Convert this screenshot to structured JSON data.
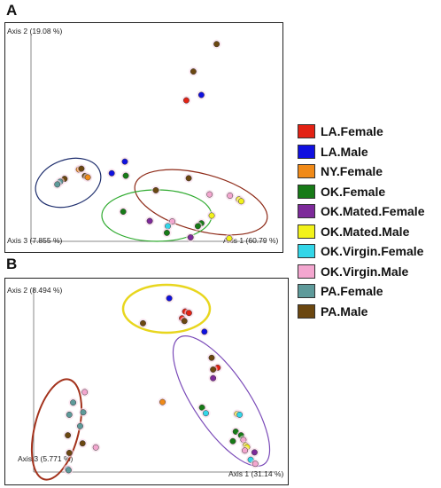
{
  "legend": [
    {
      "label": "LA.Female",
      "color": "#e32214"
    },
    {
      "label": "LA.Male",
      "color": "#1010e0"
    },
    {
      "label": "NY.Female",
      "color": "#f08a18"
    },
    {
      "label": "OK.Female",
      "color": "#177a17"
    },
    {
      "label": "OK.Mated.Female",
      "color": "#7d2a9a"
    },
    {
      "label": "OK.Mated.Male",
      "color": "#f2f21a"
    },
    {
      "label": "OK.Virgin.Female",
      "color": "#33d6e8"
    },
    {
      "label": "OK.Virgin.Male",
      "color": "#f3a6cf"
    },
    {
      "label": "PA.Female",
      "color": "#5e9a9a"
    },
    {
      "label": "PA.Male",
      "color": "#6b4710"
    }
  ],
  "chart_data": [
    {
      "type": "scatter",
      "panel": "A",
      "axis1_label": "Axis 1 (60.79 %)",
      "axis2_label": "Axis 2 (19.08 %)",
      "axis3_label": "Axis 3 (7.855 %)",
      "xlim": [
        0,
        100
      ],
      "ylim": [
        0,
        100
      ],
      "points": [
        {
          "x": 79.1,
          "y": 95.0,
          "group": "PA.Male"
        },
        {
          "x": 69.2,
          "y": 81.8,
          "group": "PA.Male"
        },
        {
          "x": 72.6,
          "y": 70.5,
          "group": "LA.Male"
        },
        {
          "x": 66.2,
          "y": 67.9,
          "group": "LA.Female"
        },
        {
          "x": 40.0,
          "y": 38.4,
          "group": "LA.Male"
        },
        {
          "x": 34.4,
          "y": 32.8,
          "group": "LA.Male"
        },
        {
          "x": 40.4,
          "y": 31.6,
          "group": "OK.Female"
        },
        {
          "x": 67.2,
          "y": 30.4,
          "group": "PA.Male"
        },
        {
          "x": 53.2,
          "y": 24.6,
          "group": "PA.Male"
        },
        {
          "x": 76.1,
          "y": 22.6,
          "group": "OK.Virgin.Male"
        },
        {
          "x": 84.8,
          "y": 22.0,
          "group": "OK.Virgin.Male"
        },
        {
          "x": 88.6,
          "y": 20.2,
          "group": "OK.Mated.Male"
        },
        {
          "x": 89.6,
          "y": 19.3,
          "group": "OK.Mated.Male"
        },
        {
          "x": 39.3,
          "y": 14.3,
          "group": "OK.Female"
        },
        {
          "x": 77.0,
          "y": 12.4,
          "group": "OK.Mated.Male"
        },
        {
          "x": 50.6,
          "y": 9.8,
          "group": "OK.Mated.Female"
        },
        {
          "x": 60.2,
          "y": 9.6,
          "group": "OK.Virgin.Male"
        },
        {
          "x": 72.6,
          "y": 8.7,
          "group": "OK.Female"
        },
        {
          "x": 58.3,
          "y": 7.3,
          "group": "OK.Virgin.Female"
        },
        {
          "x": 71.1,
          "y": 7.3,
          "group": "OK.Female"
        },
        {
          "x": 57.9,
          "y": 4.1,
          "group": "OK.Female"
        },
        {
          "x": 68.0,
          "y": 1.9,
          "group": "OK.Mated.Female"
        },
        {
          "x": 84.5,
          "y": 1.4,
          "group": "OK.Mated.Male"
        },
        {
          "x": 20.4,
          "y": 34.6,
          "group": "NY.Female"
        },
        {
          "x": 21.5,
          "y": 35.0,
          "group": "PA.Male"
        },
        {
          "x": 23.0,
          "y": 31.5,
          "group": "PA.Male"
        },
        {
          "x": 24.2,
          "y": 30.8,
          "group": "NY.Female"
        },
        {
          "x": 14.3,
          "y": 30.1,
          "group": "PA.Male"
        },
        {
          "x": 12.4,
          "y": 28.7,
          "group": "PA.Female"
        },
        {
          "x": 11.2,
          "y": 27.4,
          "group": "PA.Female"
        }
      ]
    },
    {
      "type": "scatter",
      "panel": "B",
      "axis1_label": "Axis 1 (31.14 %)",
      "axis2_label": "Axis 2 (8.494 %)",
      "axis3_label": "Axis 3 (5.771 %)",
      "xlim": [
        0,
        100
      ],
      "ylim": [
        0,
        100
      ],
      "points": [
        {
          "x": 56.3,
          "y": 94.6,
          "group": "LA.Male"
        },
        {
          "x": 62.9,
          "y": 87.4,
          "group": "LA.Female"
        },
        {
          "x": 64.5,
          "y": 86.6,
          "group": "LA.Female"
        },
        {
          "x": 61.6,
          "y": 83.7,
          "group": "LA.Female"
        },
        {
          "x": 62.6,
          "y": 82.2,
          "group": "PA.Male"
        },
        {
          "x": 45.4,
          "y": 81.0,
          "group": "PA.Male"
        },
        {
          "x": 70.9,
          "y": 76.4,
          "group": "LA.Male"
        },
        {
          "x": 73.9,
          "y": 62.2,
          "group": "PA.Male"
        },
        {
          "x": 76.4,
          "y": 56.8,
          "group": "LA.Female"
        },
        {
          "x": 74.5,
          "y": 55.8,
          "group": "PA.Male"
        },
        {
          "x": 74.5,
          "y": 51.1,
          "group": "OK.Mated.Female"
        },
        {
          "x": 53.5,
          "y": 38.1,
          "group": "NY.Female"
        },
        {
          "x": 69.9,
          "y": 35.1,
          "group": "OK.Female"
        },
        {
          "x": 71.5,
          "y": 32.0,
          "group": "OK.Virgin.Female"
        },
        {
          "x": 84.5,
          "y": 31.6,
          "group": "OK.Mated.Male"
        },
        {
          "x": 85.5,
          "y": 31.2,
          "group": "OK.Virgin.Female"
        },
        {
          "x": 83.9,
          "y": 22.0,
          "group": "OK.Female"
        },
        {
          "x": 86.1,
          "y": 20.0,
          "group": "OK.Female"
        },
        {
          "x": 87.1,
          "y": 17.5,
          "group": "OK.Virgin.Male"
        },
        {
          "x": 82.7,
          "y": 16.8,
          "group": "OK.Female"
        },
        {
          "x": 88.0,
          "y": 14.5,
          "group": "OK.Mated.Male"
        },
        {
          "x": 88.6,
          "y": 13.5,
          "group": "OK.Mated.Male"
        },
        {
          "x": 87.7,
          "y": 11.7,
          "group": "OK.Virgin.Male"
        },
        {
          "x": 91.7,
          "y": 10.7,
          "group": "OK.Mated.Female"
        },
        {
          "x": 90.1,
          "y": 6.7,
          "group": "OK.Virgin.Female"
        },
        {
          "x": 92.0,
          "y": 4.5,
          "group": "OK.Virgin.Male"
        },
        {
          "x": 21.2,
          "y": 43.5,
          "group": "OK.Virgin.Male"
        },
        {
          "x": 16.4,
          "y": 37.8,
          "group": "PA.Female"
        },
        {
          "x": 20.6,
          "y": 32.5,
          "group": "PA.Female"
        },
        {
          "x": 14.8,
          "y": 31.2,
          "group": "PA.Female"
        },
        {
          "x": 19.3,
          "y": 25.0,
          "group": "PA.Female"
        },
        {
          "x": 14.2,
          "y": 20.0,
          "group": "PA.Male"
        },
        {
          "x": 20.3,
          "y": 15.6,
          "group": "PA.Male"
        },
        {
          "x": 25.8,
          "y": 13.4,
          "group": "OK.Virgin.Male"
        },
        {
          "x": 14.8,
          "y": 10.4,
          "group": "PA.Male"
        },
        {
          "x": 14.2,
          "y": 1.6,
          "group": "OK.Virgin.Female"
        },
        {
          "x": 14.5,
          "y": 1.0,
          "group": "PA.Female"
        }
      ]
    }
  ]
}
